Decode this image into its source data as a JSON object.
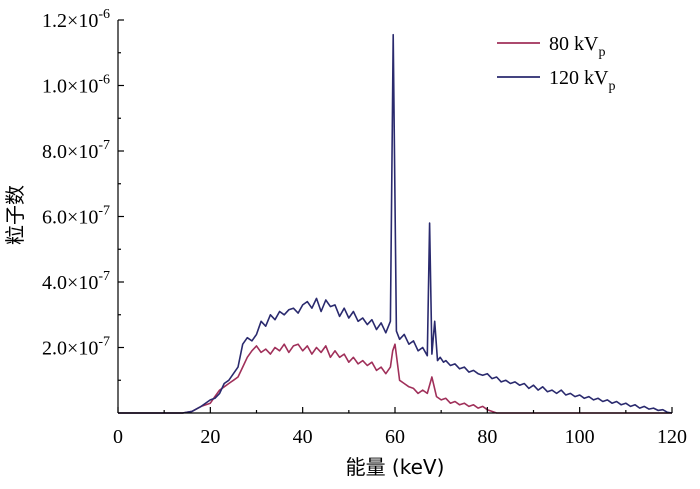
{
  "chart_data": {
    "type": "line",
    "title": "",
    "xlabel": "能量 (keV)",
    "ylabel": "粒子数",
    "xlim": [
      0,
      120
    ],
    "ylim": [
      0,
      1.2e-06
    ],
    "grid": false,
    "legend_position": "top-right",
    "x_ticks": [
      {
        "value": 0,
        "label": "0"
      },
      {
        "value": 20,
        "label": "20"
      },
      {
        "value": 40,
        "label": "40"
      },
      {
        "value": 60,
        "label": "60"
      },
      {
        "value": 80,
        "label": "80"
      },
      {
        "value": 100,
        "label": "100"
      },
      {
        "value": 120,
        "label": "120"
      }
    ],
    "y_ticks": [
      {
        "value": 2e-07,
        "mantissa": "2.0×10",
        "exp": "-7"
      },
      {
        "value": 4e-07,
        "mantissa": "4.0×10",
        "exp": "-7"
      },
      {
        "value": 6e-07,
        "mantissa": "6.0×10",
        "exp": "-7"
      },
      {
        "value": 8e-07,
        "mantissa": "8.0×10",
        "exp": "-7"
      },
      {
        "value": 1e-06,
        "mantissa": "1.0×10",
        "exp": "-6"
      },
      {
        "value": 1.2e-06,
        "mantissa": "1.2×10",
        "exp": "-6"
      }
    ],
    "series": [
      {
        "name": "80 kVp",
        "legend_main": "80 kV",
        "legend_sub": "p",
        "color": "#a0305a",
        "x": [
          0,
          12,
          14,
          16,
          18,
          20,
          21,
          22,
          23,
          24,
          25,
          26,
          27,
          28,
          29,
          30,
          31,
          32,
          33,
          34,
          35,
          36,
          37,
          38,
          39,
          40,
          41,
          42,
          43,
          44,
          45,
          46,
          47,
          48,
          49,
          50,
          51,
          52,
          53,
          54,
          55,
          56,
          57,
          58,
          59,
          59.5,
          60,
          61,
          62,
          63,
          64,
          65,
          66,
          67,
          68,
          69,
          70,
          71,
          72,
          73,
          74,
          75,
          76,
          77,
          78,
          79,
          80,
          81,
          82,
          90,
          100,
          110,
          120
        ],
        "y": [
          0,
          0,
          0,
          5e-09,
          2e-08,
          3e-08,
          5e-08,
          7e-08,
          8e-08,
          9e-08,
          1e-07,
          1.1e-07,
          1.4e-07,
          1.7e-07,
          1.9e-07,
          2.05e-07,
          1.85e-07,
          1.95e-07,
          1.8e-07,
          2e-07,
          1.9e-07,
          2.1e-07,
          1.85e-07,
          2.05e-07,
          2.1e-07,
          1.9e-07,
          2.05e-07,
          1.8e-07,
          2e-07,
          1.85e-07,
          2.05e-07,
          1.7e-07,
          1.9e-07,
          1.7e-07,
          1.8e-07,
          1.55e-07,
          1.7e-07,
          1.5e-07,
          1.6e-07,
          1.45e-07,
          1.55e-07,
          1.3e-07,
          1.4e-07,
          1.2e-07,
          1.4e-07,
          1.9e-07,
          2.1e-07,
          1e-07,
          9e-08,
          8e-08,
          7.5e-08,
          6e-08,
          7e-08,
          6e-08,
          1.1e-07,
          5e-08,
          4e-08,
          4.5e-08,
          3e-08,
          3.5e-08,
          2.5e-08,
          3e-08,
          2e-08,
          2.5e-08,
          1.5e-08,
          2e-08,
          1e-08,
          5e-09,
          0,
          0,
          0,
          0,
          0
        ]
      },
      {
        "name": "120 kVp",
        "legend_main": "120 kV",
        "legend_sub": "p",
        "color": "#2a2a6e",
        "x": [
          0,
          12,
          14,
          16,
          18,
          20,
          21,
          22,
          23,
          24,
          25,
          26,
          27,
          28,
          29,
          30,
          31,
          32,
          33,
          34,
          35,
          36,
          37,
          38,
          39,
          40,
          41,
          42,
          43,
          44,
          45,
          46,
          47,
          48,
          49,
          50,
          51,
          52,
          53,
          54,
          55,
          56,
          57,
          58,
          59,
          59.6,
          60.3,
          61,
          62,
          63,
          64,
          65,
          66,
          67,
          67.5,
          68,
          68.6,
          69.2,
          69.8,
          70.5,
          71,
          72,
          73,
          74,
          75,
          76,
          77,
          78,
          79,
          80,
          81,
          82,
          83,
          84,
          85,
          86,
          87,
          88,
          89,
          90,
          91,
          92,
          93,
          94,
          95,
          96,
          97,
          98,
          99,
          100,
          101,
          102,
          103,
          104,
          105,
          106,
          107,
          108,
          109,
          110,
          111,
          112,
          113,
          114,
          115,
          116,
          117,
          118,
          119,
          120
        ],
        "y": [
          0,
          0,
          0,
          5e-09,
          2e-08,
          4e-08,
          4.5e-08,
          6e-08,
          9e-08,
          1e-07,
          1.2e-07,
          1.4e-07,
          2.1e-07,
          2.3e-07,
          2.2e-07,
          2.4e-07,
          2.8e-07,
          2.65e-07,
          3e-07,
          2.85e-07,
          3.1e-07,
          3e-07,
          3.15e-07,
          3.2e-07,
          3.05e-07,
          3.3e-07,
          3.4e-07,
          3.2e-07,
          3.5e-07,
          3.1e-07,
          3.45e-07,
          3.25e-07,
          3.3e-07,
          2.95e-07,
          3.2e-07,
          2.9e-07,
          3.1e-07,
          2.8e-07,
          2.9e-07,
          2.7e-07,
          2.85e-07,
          2.55e-07,
          2.75e-07,
          2.45e-07,
          2.8e-07,
          1.155e-06,
          2.5e-07,
          2.25e-07,
          2.4e-07,
          2.1e-07,
          2.2e-07,
          1.9e-07,
          2e-07,
          1.75e-07,
          5.8e-07,
          1.8e-07,
          2.8e-07,
          1.6e-07,
          1.7e-07,
          1.55e-07,
          1.6e-07,
          1.45e-07,
          1.5e-07,
          1.35e-07,
          1.4e-07,
          1.25e-07,
          1.3e-07,
          1.2e-07,
          1.15e-07,
          1.2e-07,
          1.05e-07,
          1.1e-07,
          9.5e-08,
          1e-07,
          9e-08,
          9.5e-08,
          8.5e-08,
          9e-08,
          7.5e-08,
          8.5e-08,
          7e-08,
          8e-08,
          6.5e-08,
          7e-08,
          6e-08,
          7e-08,
          5.5e-08,
          6e-08,
          5e-08,
          5.5e-08,
          4.5e-08,
          5e-08,
          4e-08,
          4.5e-08,
          3.5e-08,
          4e-08,
          3e-08,
          3.5e-08,
          2.5e-08,
          3e-08,
          2e-08,
          2.5e-08,
          1.5e-08,
          2e-08,
          1.2e-08,
          1.5e-08,
          8e-09,
          1e-08,
          2e-09,
          0
        ]
      }
    ]
  }
}
